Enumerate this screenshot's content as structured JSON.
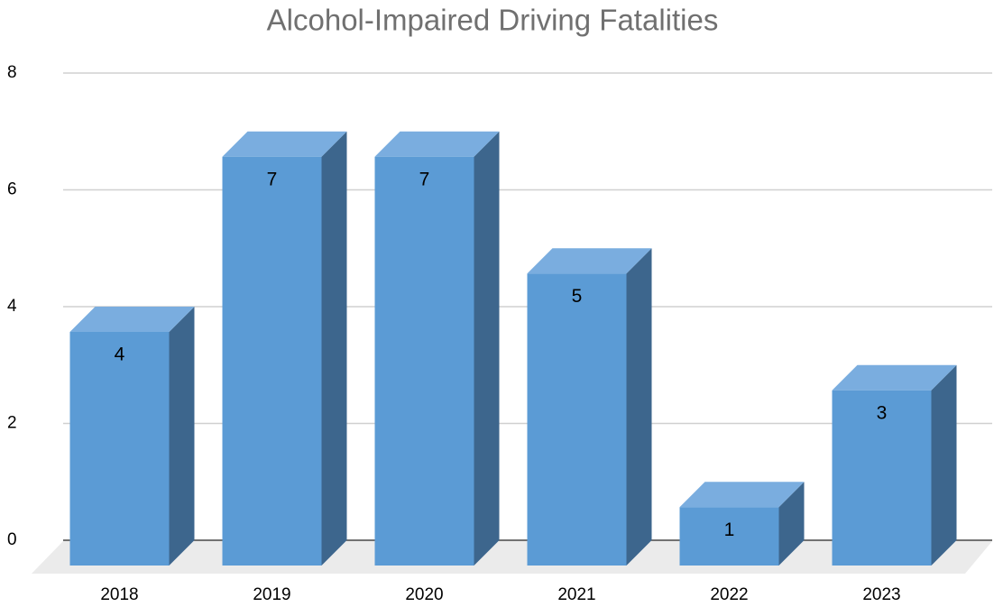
{
  "chart_data": {
    "type": "bar",
    "title": "Alcohol-Impaired Driving Fatalities",
    "categories": [
      "2018",
      "2019",
      "2020",
      "2021",
      "2022",
      "2023"
    ],
    "values": [
      4,
      7,
      7,
      5,
      1,
      3
    ],
    "color": "#5b9bd5",
    "ylim": [
      0,
      8
    ],
    "yticks": [
      0,
      2,
      4,
      6,
      8
    ],
    "grid": true
  }
}
